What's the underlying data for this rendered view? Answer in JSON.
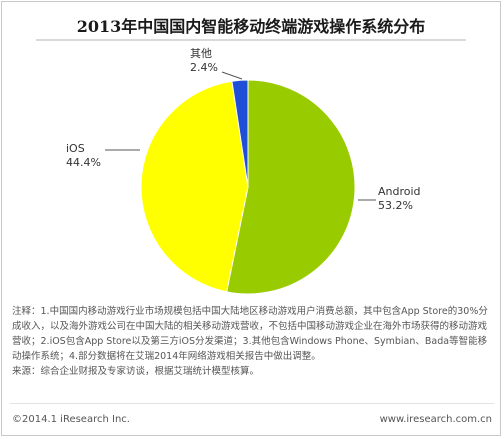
{
  "chart_data": {
    "type": "pie",
    "title": "2013年中国国内智能移动终端游戏操作系统分布",
    "slices": [
      {
        "label": "Android",
        "value": 53.2,
        "value_label": "53.2%",
        "color": "#99cc00"
      },
      {
        "label": "iOS",
        "value": 44.4,
        "value_label": "44.4%",
        "color": "#ffff00"
      },
      {
        "label": "其他",
        "value": 2.4,
        "value_label": "2.4%",
        "color": "#1f4fd6"
      }
    ],
    "start_angle_deg": 0,
    "direction": "clockwise"
  },
  "notes": {
    "note": "注释：1.中国国内移动游戏行业市场规模包括中国大陆地区移动游戏用户消费总额，其中包含App Store的30%分成收入，以及海外游戏公司在中国大陆的相关移动游戏营收，不包括中国移动游戏企业在海外市场获得的移动游戏营收；2.iOS包含App Store以及第三方iOS分发渠道；3.其他包含Windows Phone、Symbian、Bada等智能移动操作系统；4.部分数据将在艾瑞2014年网络游戏相关报告中做出调整。",
    "source": "来源：综合企业财报及专家访谈，根据艾瑞统计模型核算。"
  },
  "footer": {
    "copyright": "©2014.1 iResearch Inc.",
    "website": "www.iresearch.com.cn"
  }
}
